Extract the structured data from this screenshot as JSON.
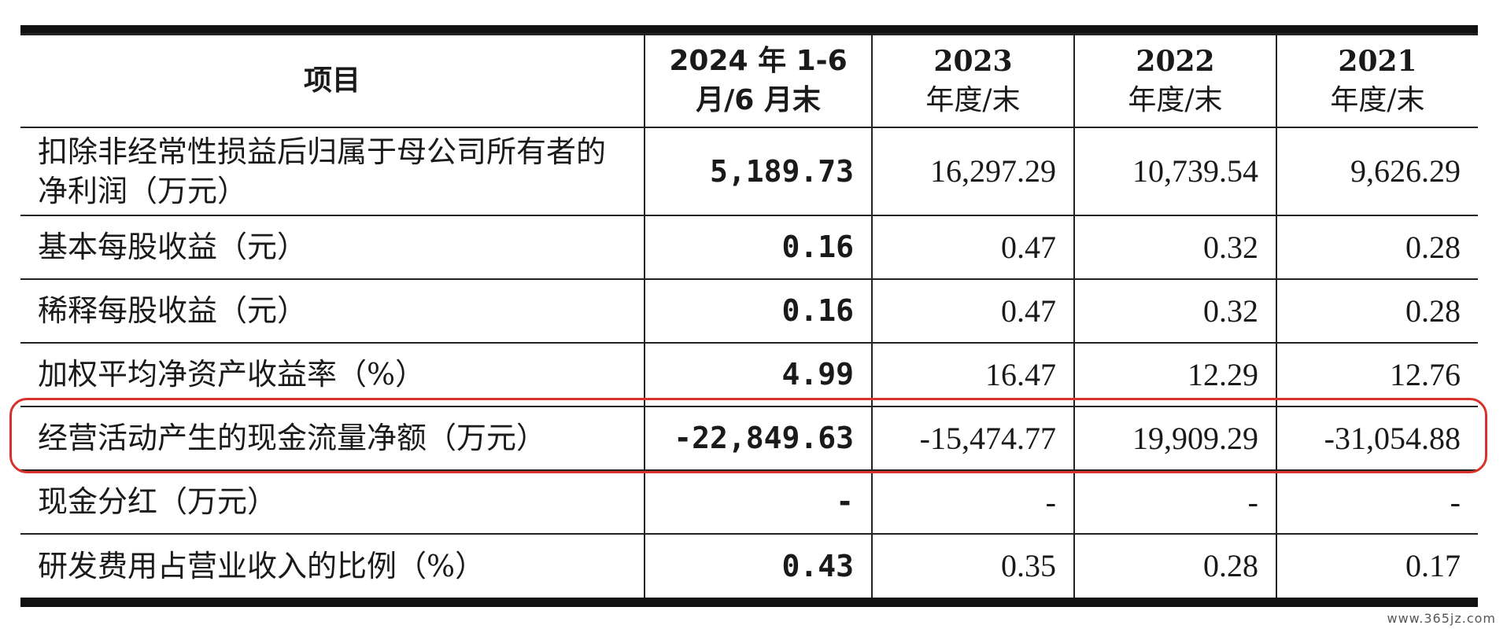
{
  "table": {
    "headers": {
      "item": "项目",
      "period1_line1": "2024 年 1-6",
      "period1_line2": "月/6 月末",
      "period2_year": "2023",
      "period2_suffix": "年度/末",
      "period3_year": "2022",
      "period3_suffix": "年度/末",
      "period4_year": "2021",
      "period4_suffix": "年度/末"
    },
    "rows": [
      {
        "item": "扣除非经常性损益后归属于母公司所有者的净利润（万元）",
        "v2024": "5,189.73",
        "v2023": "16,297.29",
        "v2022": "10,739.54",
        "v2021": "9,626.29"
      },
      {
        "item": "基本每股收益（元）",
        "v2024": "0.16",
        "v2023": "0.47",
        "v2022": "0.32",
        "v2021": "0.28"
      },
      {
        "item": "稀释每股收益（元）",
        "v2024": "0.16",
        "v2023": "0.47",
        "v2022": "0.32",
        "v2021": "0.28"
      },
      {
        "item": "加权平均净资产收益率（%）",
        "v2024": "4.99",
        "v2023": "16.47",
        "v2022": "12.29",
        "v2021": "12.76"
      },
      {
        "item": "经营活动产生的现金流量净额（万元）",
        "v2024": "-22,849.63",
        "v2023": "-15,474.77",
        "v2022": "19,909.29",
        "v2021": "-31,054.88"
      },
      {
        "item": "现金分红（万元）",
        "v2024": "-",
        "v2023": "-",
        "v2022": "-",
        "v2021": "-"
      },
      {
        "item": "研发费用占营业收入的比例（%）",
        "v2024": "0.43",
        "v2023": "0.35",
        "v2022": "0.28",
        "v2021": "0.17"
      }
    ],
    "highlighted_row": 4,
    "highlight_color": "#d8312b"
  },
  "watermark": "www.365jz.com"
}
